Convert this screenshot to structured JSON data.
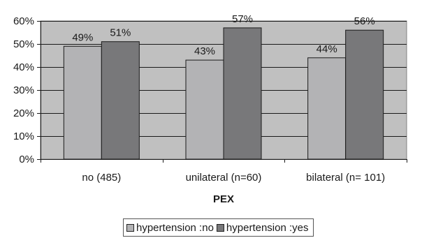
{
  "chart_data": {
    "type": "bar",
    "categories": [
      "no (485)",
      "unilateral (n=60)",
      "bilateral (n= 101)"
    ],
    "series": [
      {
        "name": "hypertension :no",
        "values": [
          49,
          43,
          44
        ],
        "labels": [
          "49%",
          "43%",
          "44%"
        ],
        "color": "#b3b3b5"
      },
      {
        "name": "hypertension :yes",
        "values": [
          51,
          57,
          56
        ],
        "labels": [
          "51%",
          "57%",
          "56%"
        ],
        "color": "#78787a"
      }
    ],
    "xlabel": "PEX",
    "ylabel": "",
    "ylim": [
      0,
      60
    ],
    "yticks": [
      0,
      10,
      20,
      30,
      40,
      50,
      60
    ],
    "ytick_labels": [
      "0%",
      "10%",
      "20%",
      "30%",
      "40%",
      "50%",
      "60%"
    ],
    "grid": true,
    "legend_position": "bottom",
    "plot_background": "#c0c0c0"
  }
}
